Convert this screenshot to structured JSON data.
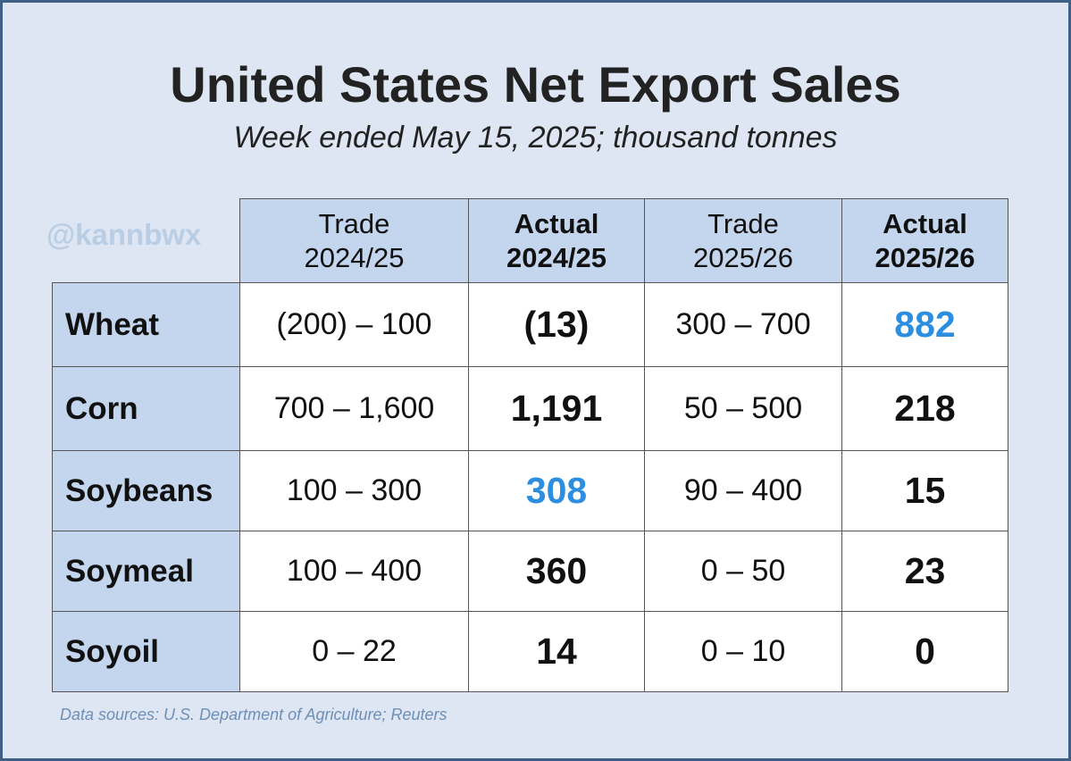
{
  "title": "United States Net Export Sales",
  "subtitle": "Week ended May 15, 2025; thousand tonnes",
  "watermark": "@kannbwx",
  "source": "Data sources: U.S. Department of Agriculture; Reuters",
  "colors": {
    "background": "#dde6f2",
    "header_fill": "#c3d6ee",
    "highlight": "#2b8ee0",
    "frame": "#3f5f86"
  },
  "chart_data": {
    "type": "table",
    "columns": [
      {
        "line1": "Trade",
        "line2": "2024/25",
        "bold": false
      },
      {
        "line1": "Actual",
        "line2": "2024/25",
        "bold": true
      },
      {
        "line1": "Trade",
        "line2": "2025/26",
        "bold": false
      },
      {
        "line1": "Actual",
        "line2": "2025/26",
        "bold": true
      }
    ],
    "rows": [
      {
        "label": "Wheat",
        "trade_2024_25": "(200) – 100",
        "actual_2024_25": "(13)",
        "trade_2025_26": "300 – 700",
        "actual_2025_26": "882",
        "highlight": "actual_2025_26"
      },
      {
        "label": "Corn",
        "trade_2024_25": "700 – 1,600",
        "actual_2024_25": "1,191",
        "trade_2025_26": "50 – 500",
        "actual_2025_26": "218",
        "highlight": ""
      },
      {
        "label": "Soybeans",
        "trade_2024_25": "100 – 300",
        "actual_2024_25": "308",
        "trade_2025_26": "90 – 400",
        "actual_2025_26": "15",
        "highlight": "actual_2024_25"
      },
      {
        "label": "Soymeal",
        "trade_2024_25": "100 – 400",
        "actual_2024_25": "360",
        "trade_2025_26": "0 – 50",
        "actual_2025_26": "23",
        "highlight": ""
      },
      {
        "label": "Soyoil",
        "trade_2024_25": "0 – 22",
        "actual_2024_25": "14",
        "trade_2025_26": "0 – 10",
        "actual_2025_26": "0",
        "highlight": ""
      }
    ]
  }
}
